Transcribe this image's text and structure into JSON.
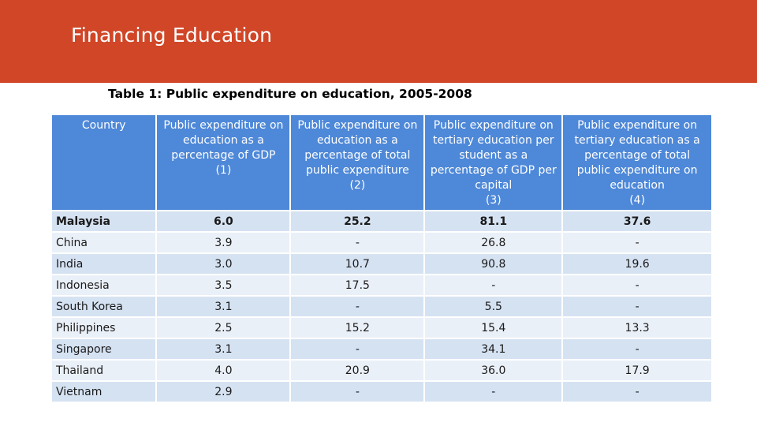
{
  "slide": {
    "title": "Financing Education",
    "banner_color": "#D04627"
  },
  "caption": "Table 1: Public expenditure on education, 2005-2008",
  "table": {
    "header_color": "#4E88D8",
    "headers": {
      "country": "Country",
      "col1": [
        "Public expenditure on",
        "education as a",
        "percentage of GDP",
        "(1)"
      ],
      "col2": [
        "Public expenditure on",
        "education as a",
        "percentage of total",
        "public expenditure",
        "(2)"
      ],
      "col3": [
        "Public expenditure on",
        "tertiary education per",
        "student as a",
        "percentage of GDP per",
        "capital",
        "(3)"
      ],
      "col4": [
        "Public expenditure on",
        "tertiary education as a",
        "percentage of total",
        "public expenditure on",
        "education",
        "(4)"
      ]
    },
    "rows": [
      {
        "country": "Malaysia",
        "c1": "6.0",
        "c2": "25.2",
        "c3": "81.1",
        "c4": "37.6"
      },
      {
        "country": "China",
        "c1": "3.9",
        "c2": "-",
        "c3": "26.8",
        "c4": "-"
      },
      {
        "country": "India",
        "c1": "3.0",
        "c2": "10.7",
        "c3": "90.8",
        "c4": "19.6"
      },
      {
        "country": "Indonesia",
        "c1": "3.5",
        "c2": "17.5",
        "c3": "-",
        "c4": "-"
      },
      {
        "country": "South Korea",
        "c1": "3.1",
        "c2": "-",
        "c3": "5.5",
        "c4": "-"
      },
      {
        "country": "Philippines",
        "c1": "2.5",
        "c2": "15.2",
        "c3": "15.4",
        "c4": "13.3"
      },
      {
        "country": "Singapore",
        "c1": "3.1",
        "c2": "-",
        "c3": "34.1",
        "c4": "-"
      },
      {
        "country": "Thailand",
        "c1": "4.0",
        "c2": "20.9",
        "c3": "36.0",
        "c4": "17.9"
      },
      {
        "country": "Vietnam",
        "c1": "2.9",
        "c2": "-",
        "c3": "-",
        "c4": "-"
      }
    ]
  }
}
